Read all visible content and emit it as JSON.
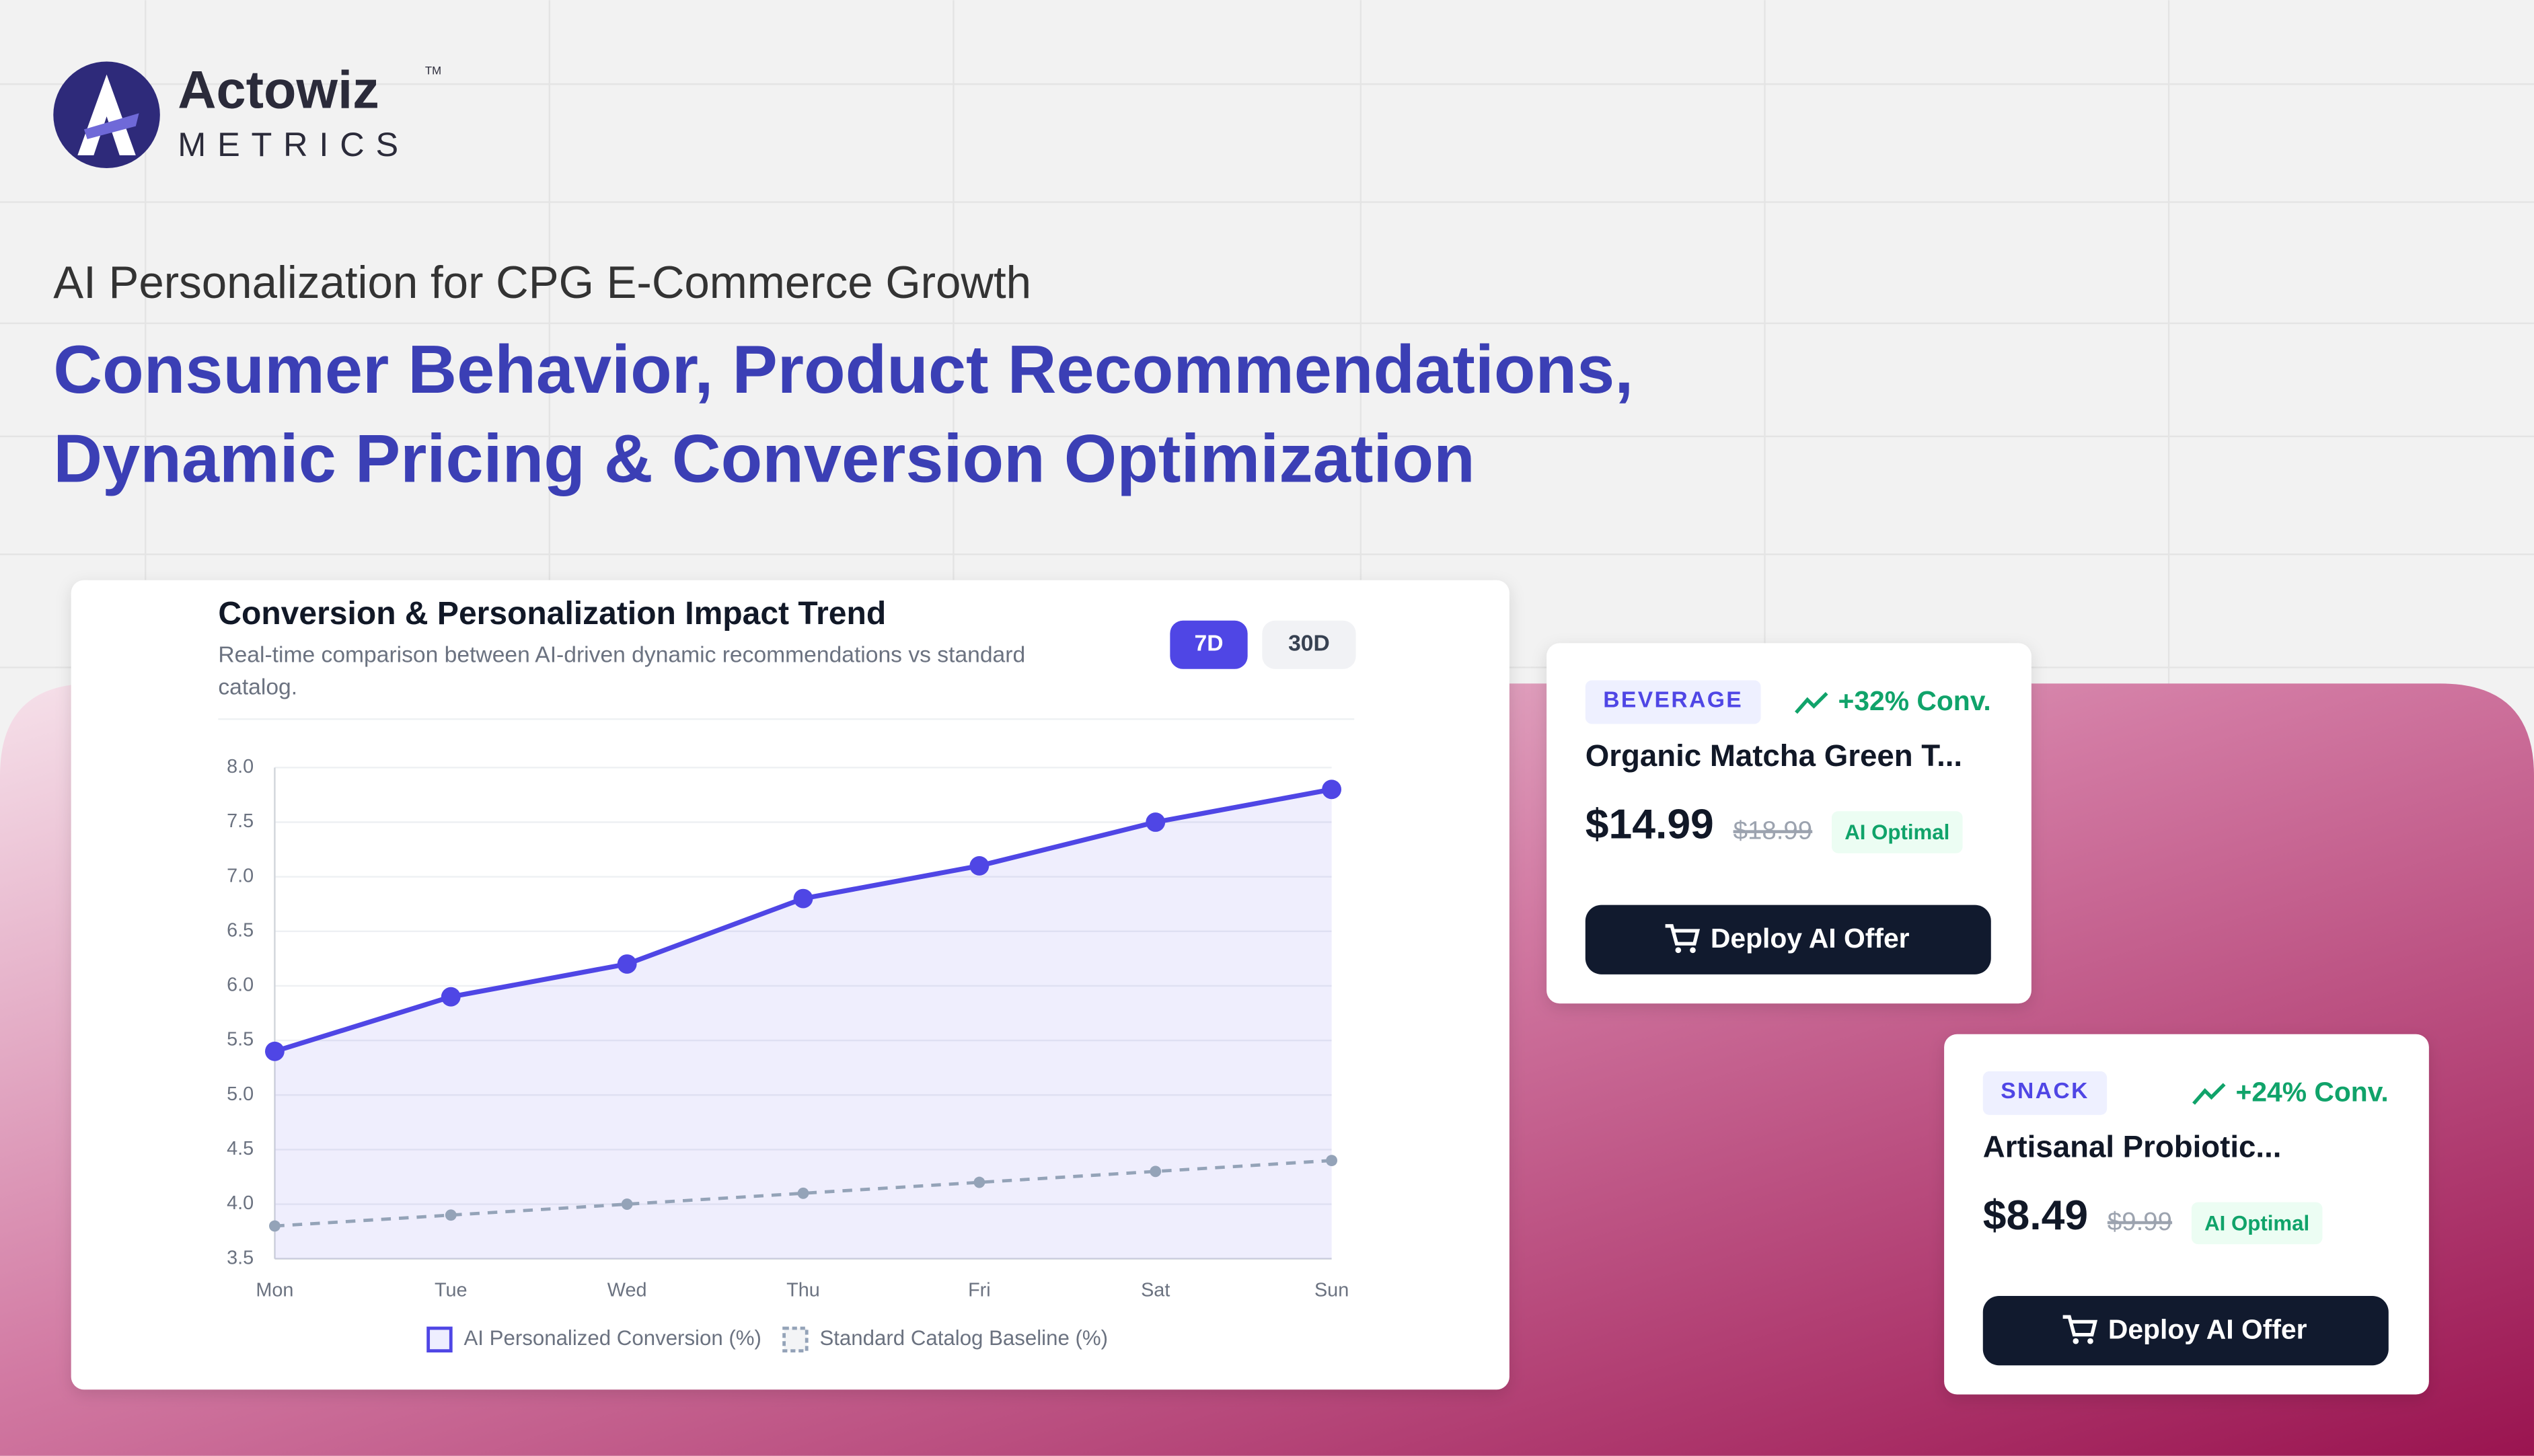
{
  "header": {
    "brand": "Actowiz",
    "brand_sub": "METRICS",
    "trademark": "TM",
    "eyebrow": "AI Personalization for CPG E-Commerce Growth",
    "headline": [
      "Consumer Behavior, Product Recommendations,",
      "Dynamic Pricing & Conversion Optimization"
    ]
  },
  "controls": [
    "7D",
    "30D"
  ],
  "chart_data": {
    "type": "line",
    "title": "Conversion & Personalization Impact Trend",
    "subtitle": [
      "Real-time comparison between AI-driven dynamic recommendations vs standard",
      "catalog."
    ],
    "categories": [
      "Mon",
      "Tue",
      "Wed",
      "Thu",
      "Fri",
      "Sat",
      "Sun"
    ],
    "series": [
      {
        "name": "AI Personalized Conversion (%)",
        "color": "#4f46e5",
        "values": [
          5.4,
          5.9,
          6.2,
          6.8,
          7.1,
          7.5,
          7.8
        ]
      },
      {
        "name": "Standard Catalog Baseline (%)",
        "color": "#94a3b8",
        "values": [
          3.8,
          3.9,
          4.0,
          4.1,
          4.2,
          4.3,
          4.4
        ]
      }
    ],
    "ylim": [
      3.5,
      8.0
    ],
    "yticks": [
      3.5,
      {
        "value": 4,
        "label": "4.0"
      },
      4.5,
      {
        "value": 5,
        "label": "5.0"
      },
      5.5,
      {
        "value": 6,
        "label": "6.0"
      },
      6.5,
      {
        "value": 7,
        "label": "7.0"
      },
      7.5,
      {
        "value": 8,
        "label": "8.0"
      }
    ],
    "grid": true
  },
  "cards": [
    {
      "category": "BEVERAGE",
      "trend": "+32% Conv.",
      "name": "Organic Matcha Green T...",
      "price": "$14.99",
      "old_price": "$18.99",
      "badge": "AI Optimal",
      "button": "Deploy AI Offer"
    },
    {
      "category": "SNACK",
      "trend": "+24% Conv.",
      "name": "Artisanal Probiotic...",
      "price": "$8.49",
      "old_price": "$9.99",
      "badge": "AI Optimal",
      "button": "Deploy AI Offer"
    }
  ]
}
